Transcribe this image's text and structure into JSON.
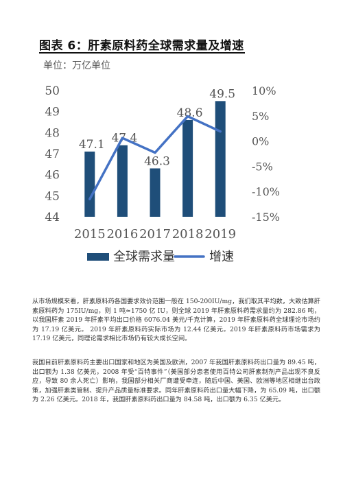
{
  "header": {
    "title": "图表 6：肝素原料药全球需求量及增速"
  },
  "chart_data": {
    "type": "bar",
    "unit_label": "单位：万亿单位",
    "categories": [
      "2015",
      "2016",
      "2017",
      "2018",
      "2019"
    ],
    "series": [
      {
        "name": "全球需求量",
        "kind": "bar",
        "axis": "left",
        "color": "#1F4E79",
        "values": [
          47.1,
          47.4,
          46.3,
          48.6,
          49.5
        ]
      },
      {
        "name": "增速",
        "kind": "line",
        "axis": "right",
        "color": "#4472C4",
        "values": [
          -11.5,
          0.6,
          -2.3,
          4.9,
          1.9
        ]
      }
    ],
    "data_labels": [
      "47.1",
      "47.4",
      "46.3",
      "48.6",
      "49.5"
    ],
    "y_left": {
      "min": 44,
      "max": 50,
      "ticks": [
        "44",
        "45",
        "46",
        "47",
        "48",
        "49",
        "50"
      ]
    },
    "y_right": {
      "min": -15,
      "max": 10,
      "ticks": [
        "10%",
        "5%",
        "0%",
        "-5%",
        "-10%",
        "-15%"
      ]
    },
    "legend_position": "bottom",
    "grid": false
  },
  "body": {
    "paragraph1": "从市场规模来看，肝素原料药各国要求效价范围一般在 150-200IU/mg，我们取其平均数，大致估算肝素原料药为 175IU/mg，则 1 吨≈1750 亿 IU，则全球 2019 年肝素原料药需求量约为 282.86 吨，以我国肝素 2019 年肝素平均出口价格 6076.04 美元/千克计算，2019 年肝素原料药全球理论市场约为 17.19 亿美元。 2019 年肝素原料药实际市场为 12.44 亿美元。2019 年肝素原料药市场需求为 17.19 亿美元，同理论需求相比市场仍有较大成长空间。",
    "paragraph2": "我国目前肝素原料药主要出口国家和地区为美国及欧洲，2007 年我国肝素原料药出口量为 89.45 吨， 出口额为 1.38 亿美元，2008 年受“百特事件”（美国部分患者使用百特公司肝素制剂产品出现不良反应，导致 80 余人死亡）影响，我国部分相关厂商遭受牵连，随后中国、美国、欧洲等地区相继出台政策，加强肝素类管制、提升产品质量标准要求。同年肝素原料药出口量大幅下降，为 65.09 吨，出口额为 2.26 亿美元。2018 年，我国肝素原料药出口量为 84.58 吨，出口额为 6.35 亿美元。"
  }
}
